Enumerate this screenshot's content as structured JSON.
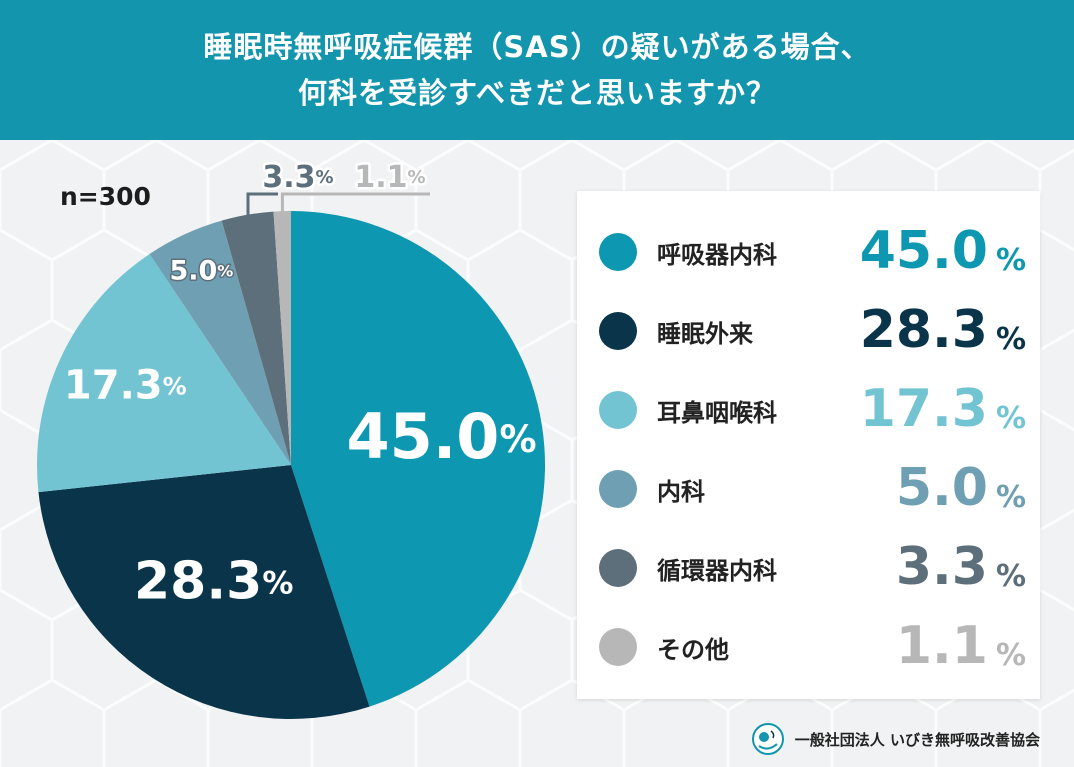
{
  "header": {
    "title_line1": "睡眠時無呼吸症候群（SAS）の疑いがある場合、",
    "title_line2": "何科を受診すべきだと思いますか？"
  },
  "chart_data": {
    "type": "pie",
    "sample_size": "n=300",
    "categories": [
      "呼吸器内科",
      "睡眠外来",
      "耳鼻咽喉科",
      "内科",
      "循環器内科",
      "その他"
    ],
    "values": [
      45.0,
      28.3,
      17.3,
      5.0,
      3.3,
      1.1
    ],
    "value_texts": [
      "45.0",
      "28.3",
      "17.3",
      "5.0",
      "3.3",
      "1.1"
    ],
    "unit": "%",
    "colors": [
      "#0d97b0",
      "#09344a",
      "#73c4d3",
      "#6f9fb2",
      "#5c6f7b",
      "#b7b7b7"
    ],
    "start_angle_deg": 0,
    "direction": "clockwise",
    "legend_position": "right"
  },
  "footer": {
    "organization": "一般社団法人 いびき無呼吸改善協会",
    "logo_icon": "organization-logo-icon"
  }
}
